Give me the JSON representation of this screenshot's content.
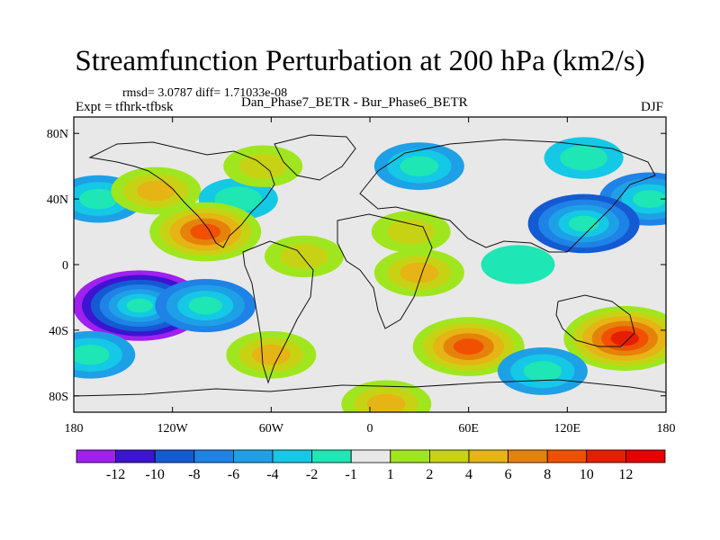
{
  "title": "Streamfunction Perturbation at 200 hPa (km2/s)",
  "stats": "rmsd= 3.0787 diff= 1.71033e-08",
  "expt": "Expt = tfhrk-tfbsk",
  "subtitle": "Dan_Phase7_BETR - Bur_Phase6_BETR",
  "season": "DJF",
  "lat_ticks": [
    "80N",
    "40N",
    "0",
    "40S",
    "80S"
  ],
  "lon_ticks": [
    "180",
    "120W",
    "60W",
    "0",
    "60E",
    "120E",
    "180"
  ],
  "colorbar": {
    "labels": [
      "-12",
      "-10",
      "-8",
      "-6",
      "-4",
      "-2",
      "-1",
      "1",
      "2",
      "4",
      "6",
      "8",
      "10",
      "12"
    ],
    "colors": [
      "#a020f0",
      "#3c14d2",
      "#145ad2",
      "#1e82e6",
      "#1ea0e6",
      "#14c8e6",
      "#1ee6b4",
      "#e8e8e8",
      "#a0e61e",
      "#c8d214",
      "#e6b414",
      "#e6820a",
      "#f05000",
      "#e61e00",
      "#e60000"
    ]
  },
  "map_data": {
    "field": "streamfunction perturbation",
    "level": "200 hPa",
    "units": "km2/s",
    "projection": "cylindrical equidistant",
    "lon_range": [
      -180,
      180
    ],
    "lat_range": [
      -90,
      90
    ],
    "anomalies": [
      {
        "lon": 170,
        "lat": 40,
        "value": -6
      },
      {
        "lon": -165,
        "lat": 40,
        "value": -4
      },
      {
        "lon": -130,
        "lat": 45,
        "value": 4
      },
      {
        "lon": -80,
        "lat": 40,
        "value": -2
      },
      {
        "lon": -100,
        "lat": 20,
        "value": 8
      },
      {
        "lon": -65,
        "lat": 60,
        "value": 2
      },
      {
        "lon": 30,
        "lat": 60,
        "value": -4
      },
      {
        "lon": 130,
        "lat": 65,
        "value": -2
      },
      {
        "lon": 130,
        "lat": 25,
        "value": -8
      },
      {
        "lon": 25,
        "lat": 20,
        "value": 2
      },
      {
        "lon": 30,
        "lat": -5,
        "value": 4
      },
      {
        "lon": -40,
        "lat": 5,
        "value": 2
      },
      {
        "lon": -140,
        "lat": -25,
        "value": -12
      },
      {
        "lon": -100,
        "lat": -25,
        "value": -6
      },
      {
        "lon": -170,
        "lat": -55,
        "value": -4
      },
      {
        "lon": -60,
        "lat": -55,
        "value": 4
      },
      {
        "lon": 60,
        "lat": -50,
        "value": 8
      },
      {
        "lon": 155,
        "lat": -45,
        "value": 10
      },
      {
        "lon": 105,
        "lat": -65,
        "value": -4
      },
      {
        "lon": 90,
        "lat": 0,
        "value": -1
      },
      {
        "lon": 10,
        "lat": -85,
        "value": 4
      }
    ]
  }
}
